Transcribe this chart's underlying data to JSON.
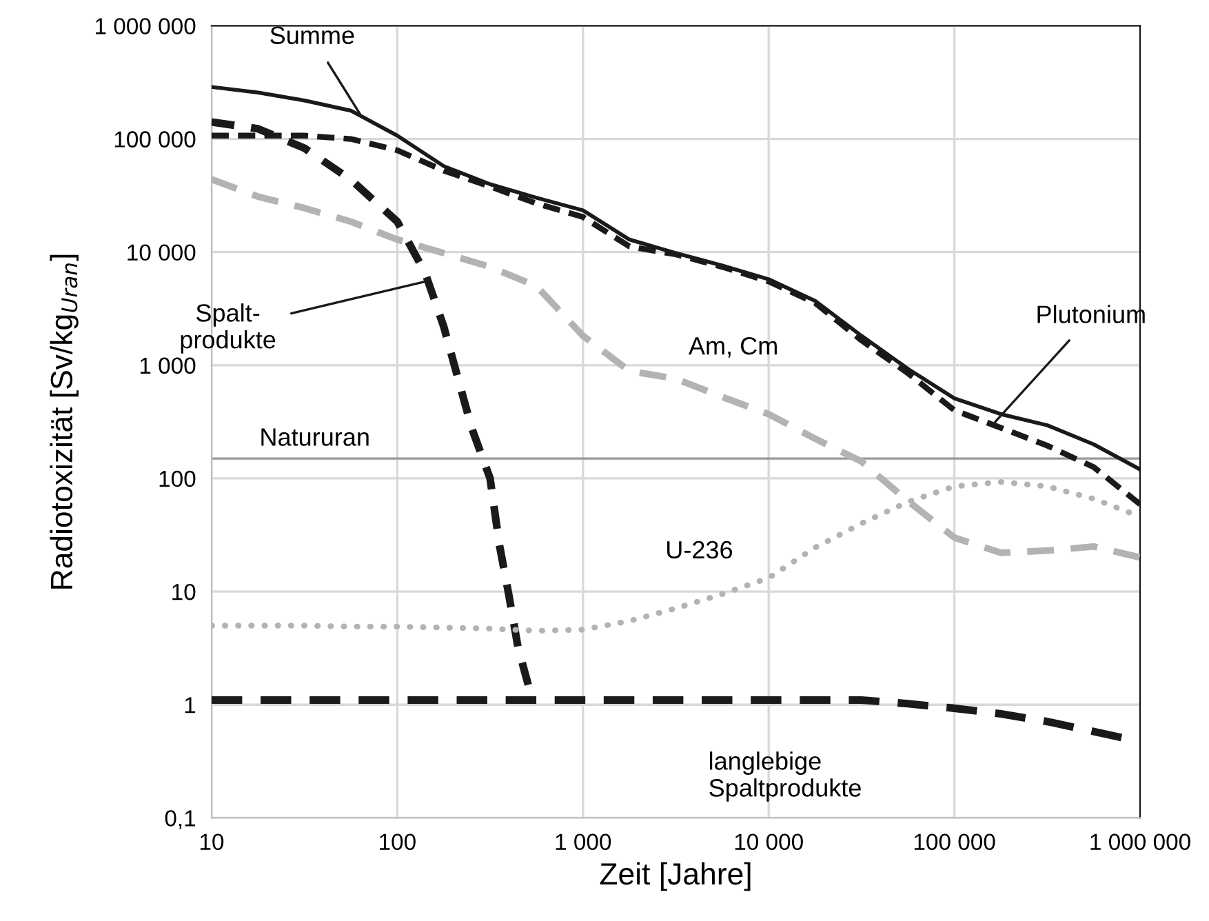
{
  "chart_data": {
    "type": "line",
    "xlabel": "Zeit [Jahre]",
    "ylabel": "Radiotoxizität [Sv/kg$_{Uran}$]",
    "log": "xy",
    "grid": true,
    "xlim": [
      10,
      1000000
    ],
    "ylim": [
      0.1,
      1000000
    ],
    "xticks": [
      10,
      100,
      {
        "value": 1000,
        "label": "1 000"
      },
      {
        "value": 10000,
        "label": "10 000"
      },
      {
        "value": 100000,
        "label": "100 000"
      },
      {
        "value": 1000000,
        "label": "1 000 000"
      }
    ],
    "yticks": [
      {
        "value": 0.1,
        "label": "0,1"
      },
      1,
      10,
      100,
      {
        "value": 1000,
        "label": "1 000"
      },
      {
        "value": 10000,
        "label": "10 000"
      },
      {
        "value": 100000,
        "label": "100 000"
      },
      {
        "value": 1000000,
        "label": "1 000 000"
      }
    ],
    "x": [
      10,
      17.8,
      31.6,
      56.2,
      100,
      178,
      316,
      562,
      1000,
      1780,
      3160,
      5620,
      10000,
      17800,
      31600,
      56200,
      100000,
      178000,
      316000,
      562000,
      1000000
    ],
    "series": [
      {
        "color": "#1a1a1a",
        "line_style": "solid",
        "values": [
          288000,
          257000,
          219000,
          178000,
          107000,
          57500,
          39800,
          30200,
          23400,
          12900,
          9800,
          7600,
          5750,
          3700,
          1820,
          930,
          510,
          370,
          295,
          200,
          120
        ]
      },
      {
        "color": "#1a1a1a",
        "line_style": "dashed",
        "values": [
          107000,
          107000,
          107000,
          100000,
          79400,
          52500,
          38000,
          26900,
          20400,
          11200,
          9550,
          7400,
          5500,
          3550,
          1660,
          850,
          400,
          280,
          195,
          126,
          59
        ]
      },
      {
        "color": "#1a1a1a",
        "line_style": "dashed",
        "x": [
          10,
          17.8,
          31.6,
          56.2,
          100,
          141,
          178,
          251,
          316,
          355,
          398,
          447,
          513
        ],
        "values": [
          141000,
          123000,
          83000,
          43700,
          18600,
          6600,
          2190,
          282,
          100,
          25.7,
          9.5,
          3.2,
          1.4
        ]
      },
      {
        "color": "#b3b3b3",
        "line_style": "dashed",
        "values": [
          44000,
          30900,
          24500,
          18600,
          12900,
          9800,
          7400,
          5000,
          1820,
          890,
          760,
          525,
          370,
          224,
          141,
          63,
          30,
          22,
          23,
          25,
          20
        ]
      },
      {
        "color": "#b3b3b3",
        "line_style": "dotted",
        "values": [
          5.0,
          5.0,
          5.0,
          4.9,
          4.9,
          4.8,
          4.7,
          4.5,
          4.6,
          5.5,
          7.1,
          9.5,
          13.2,
          24.5,
          40,
          62,
          85,
          93,
          85,
          66,
          46
        ]
      },
      {
        "color": "#1a1a1a",
        "line_style": "dashed",
        "x": [
          10,
          100,
          1000,
          10000,
          31600,
          56200,
          100000,
          178000,
          316000,
          562000,
          851000
        ],
        "values": [
          1.1,
          1.1,
          1.1,
          1.1,
          1.1,
          1.02,
          0.93,
          0.83,
          0.71,
          0.58,
          0.5
        ]
      }
    ],
    "ref_lines": [
      {
        "axis": "y",
        "value": 150,
        "label": "Natururan",
        "color": "#999999",
        "line_style": "solid"
      }
    ],
    "annotations": [
      {
        "text": "Summe",
        "x": 63,
        "y": 166000
      },
      {
        "text": "Spalt-\nprodukte",
        "x": 148,
        "y": 5600
      },
      {
        "text": "Am, Cm",
        "x": 2500,
        "y": 890
      },
      {
        "text": "Plutonium",
        "x": 166000,
        "y": 316
      },
      {
        "text": "U-236",
        "x": 5620,
        "y": 9.5
      },
      {
        "text": "langlebige\nSpaltprodukte",
        "x": 31600,
        "y": 1.1
      }
    ]
  }
}
